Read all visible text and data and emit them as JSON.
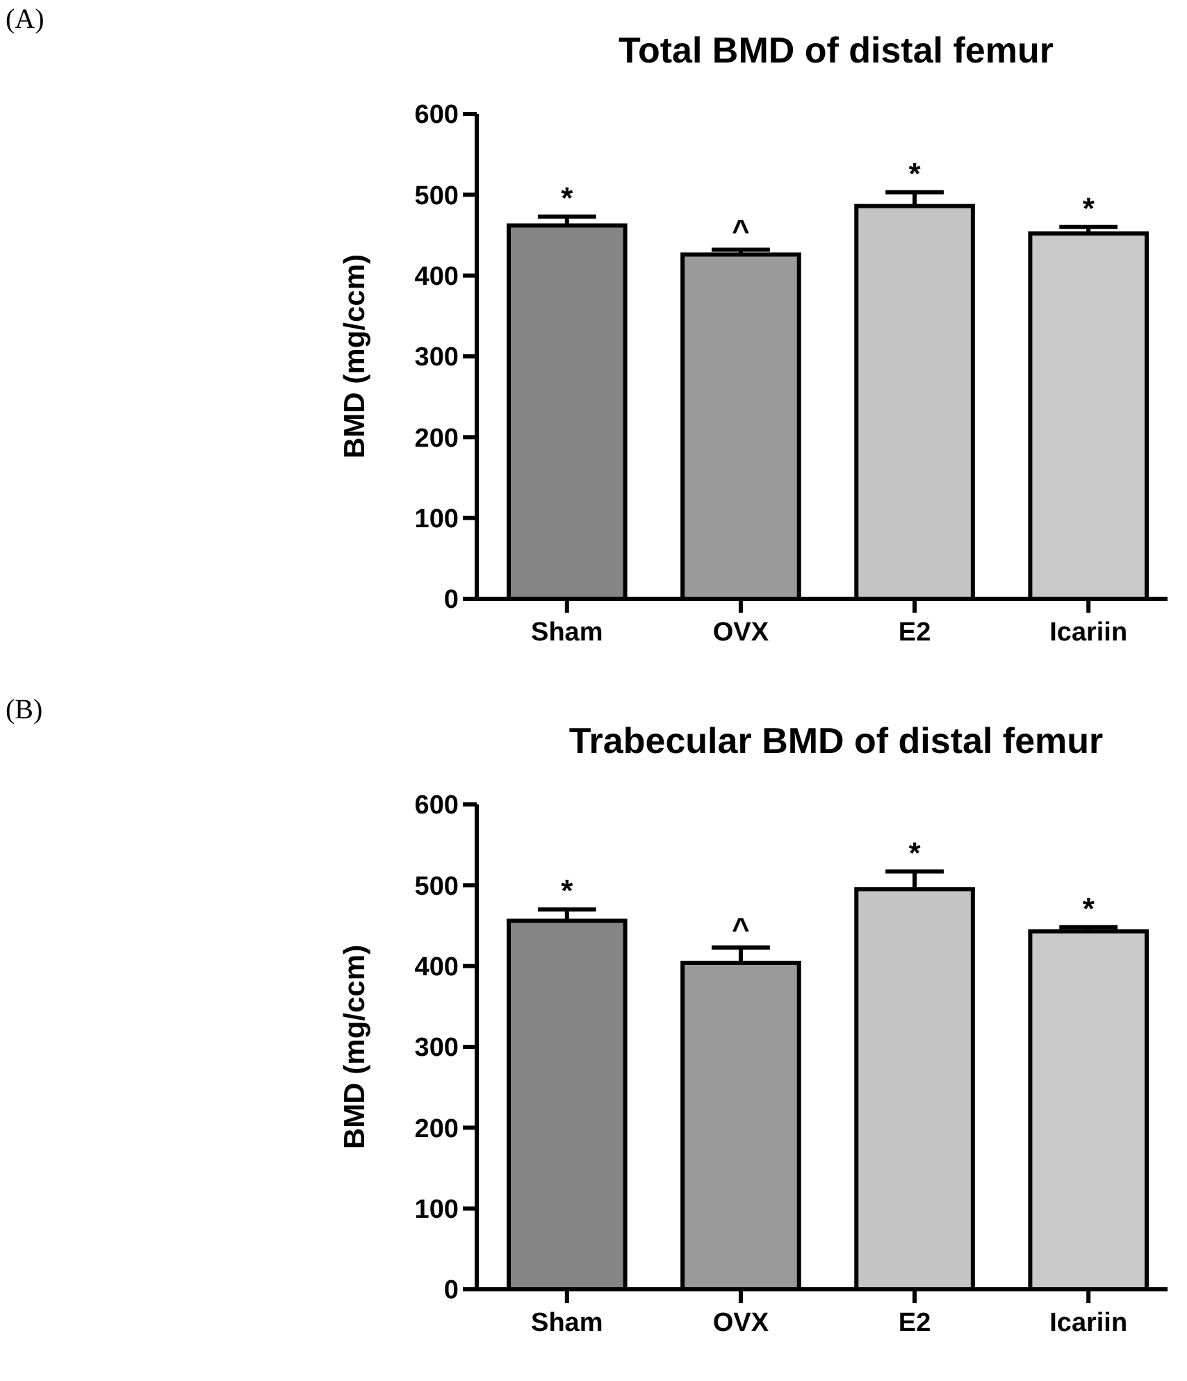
{
  "chart_data": [
    {
      "type": "bar",
      "title": "Total BMD of distal femur",
      "ylabel": "BMD (mg/ccm)",
      "categories": [
        "Sham",
        "OVX",
        "E2",
        "Icariin"
      ],
      "values": [
        462,
        426,
        486,
        452
      ],
      "errors": [
        11,
        6,
        17,
        8
      ],
      "colors": [
        "#858585",
        "#9a9a9a",
        "#c4c4c4",
        "#c9c9c9"
      ],
      "ylim": [
        0,
        600
      ],
      "yticks": [
        0,
        100,
        200,
        300,
        400,
        500,
        600
      ],
      "grid": false,
      "annotations": [
        "(A)",
        {
          "text": "*",
          "x": "Sham",
          "y": 473
        },
        {
          "text": "^",
          "x": "OVX",
          "y": 432
        },
        {
          "text": "*",
          "x": "E2",
          "y": 503
        },
        {
          "text": "*",
          "x": "Icariin",
          "y": 460
        }
      ]
    },
    {
      "type": "bar",
      "title": "Trabecular BMD of distal femur",
      "ylabel": "BMD (mg/ccm)",
      "categories": [
        "Sham",
        "OVX",
        "E2",
        "Icariin"
      ],
      "values": [
        456,
        404,
        495,
        443
      ],
      "errors": [
        14,
        19,
        22,
        5
      ],
      "colors": [
        "#858585",
        "#9a9a9a",
        "#c4c4c4",
        "#c9c9c9"
      ],
      "ylim": [
        0,
        600
      ],
      "yticks": [
        0,
        100,
        200,
        300,
        400,
        500,
        600
      ],
      "grid": false,
      "annotations": [
        "(B)",
        {
          "text": "*",
          "x": "Sham",
          "y": 470
        },
        {
          "text": "^",
          "x": "OVX",
          "y": 423
        },
        {
          "text": "*",
          "x": "E2",
          "y": 517
        },
        {
          "text": "*",
          "x": "Icariin",
          "y": 448
        }
      ]
    }
  ]
}
